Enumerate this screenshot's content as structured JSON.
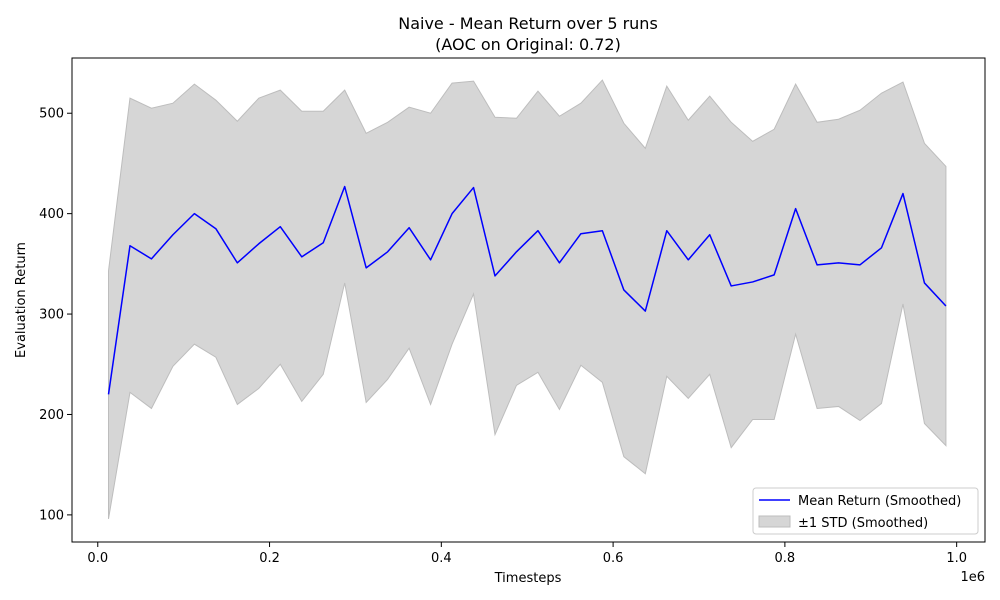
{
  "chart_data": {
    "type": "line",
    "title": "Naive - Mean Return over 5 runs",
    "subtitle": "(AOC on Original: 0.72)",
    "xlabel": "Timesteps",
    "ylabel": "Evaluation Return",
    "x_offset_label": "1e6",
    "xlim": [
      -0.03,
      1.033
    ],
    "ylim": [
      73,
      555
    ],
    "xticks": [
      0,
      0.2,
      0.4,
      0.6,
      0.8,
      1.0
    ],
    "xtick_labels": [
      "0.0",
      "0.2",
      "0.4",
      "0.6",
      "0.8",
      "1.0"
    ],
    "yticks": [
      100,
      200,
      300,
      400,
      500
    ],
    "ytick_labels": [
      "100",
      "200",
      "300",
      "400",
      "500"
    ],
    "grid": false,
    "legend_position": "lower-right",
    "x": [
      0.0125,
      0.0375,
      0.0625,
      0.0875,
      0.1125,
      0.1375,
      0.1625,
      0.1875,
      0.2125,
      0.2375,
      0.2625,
      0.2875,
      0.3125,
      0.3375,
      0.3625,
      0.3875,
      0.4125,
      0.4375,
      0.4625,
      0.4875,
      0.5125,
      0.5375,
      0.5625,
      0.5875,
      0.6125,
      0.6375,
      0.6625,
      0.6875,
      0.7125,
      0.7375,
      0.7625,
      0.7875,
      0.8125,
      0.8375,
      0.8625,
      0.8875,
      0.9125,
      0.9375,
      0.9625,
      0.9875
    ],
    "series": [
      {
        "name": "Mean Return (Smoothed)",
        "color": "#0000ff",
        "values": [
          220,
          368,
          355,
          379,
          400,
          385,
          351,
          370,
          387,
          357,
          371,
          427,
          346,
          362,
          386,
          354,
          400,
          426,
          338,
          362,
          383,
          351,
          380,
          383,
          324,
          303,
          383,
          354,
          379,
          328,
          332,
          339,
          405,
          349,
          351,
          349,
          366,
          420,
          331,
          308
        ]
      },
      {
        "name": "±1 STD (Smoothed)",
        "type": "band",
        "color": "#d6d6d6",
        "edge_color": "#bdbdbd",
        "upper": [
          343,
          515,
          505,
          510,
          529,
          513,
          492,
          515,
          523,
          502,
          502,
          523,
          480,
          491,
          506,
          500,
          530,
          532,
          496,
          495,
          522,
          497,
          510,
          533,
          490,
          465,
          527,
          493,
          517,
          491,
          472,
          484,
          529,
          491,
          494,
          503,
          520,
          531,
          470,
          447
        ],
        "lower": [
          96,
          222,
          206,
          248,
          270,
          257,
          210,
          226,
          250,
          213,
          240,
          331,
          212,
          235,
          266,
          210,
          270,
          320,
          180,
          229,
          242,
          205,
          249,
          232,
          158,
          141,
          238,
          216,
          240,
          167,
          195,
          195,
          280,
          206,
          208,
          194,
          211,
          310,
          191,
          169
        ]
      }
    ]
  }
}
